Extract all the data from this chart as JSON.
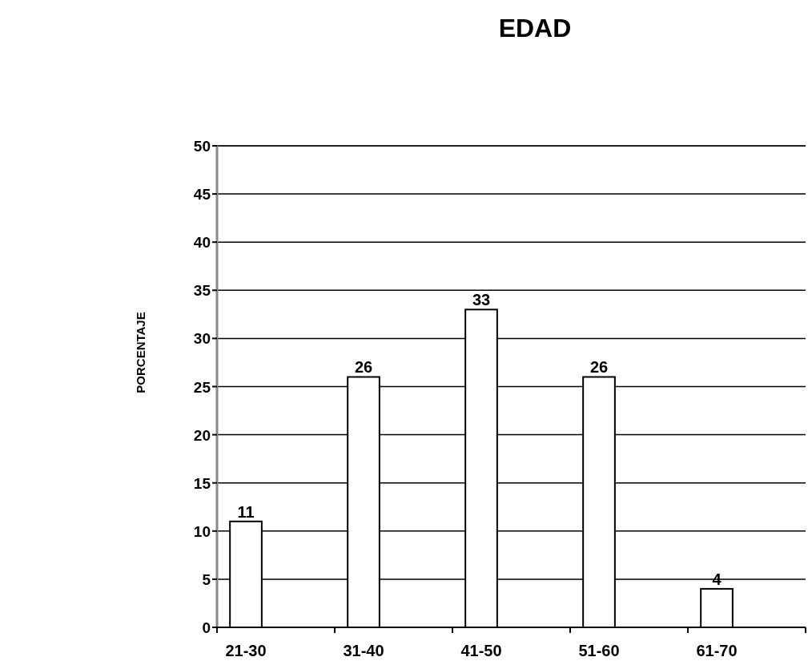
{
  "chart_data": {
    "type": "bar",
    "title": "EDAD",
    "ylabel": "PORCENTAJE",
    "categories": [
      "21-30",
      "31-40",
      "41-50",
      "51-60",
      "61-70"
    ],
    "values": [
      11,
      26,
      33,
      26,
      4
    ],
    "color": "#ffffff",
    "ylim": [
      0,
      50
    ],
    "yticks": [
      0,
      5,
      10,
      15,
      20,
      25,
      30,
      35,
      40,
      45,
      50
    ],
    "grid": "y",
    "data_labels": true
  }
}
